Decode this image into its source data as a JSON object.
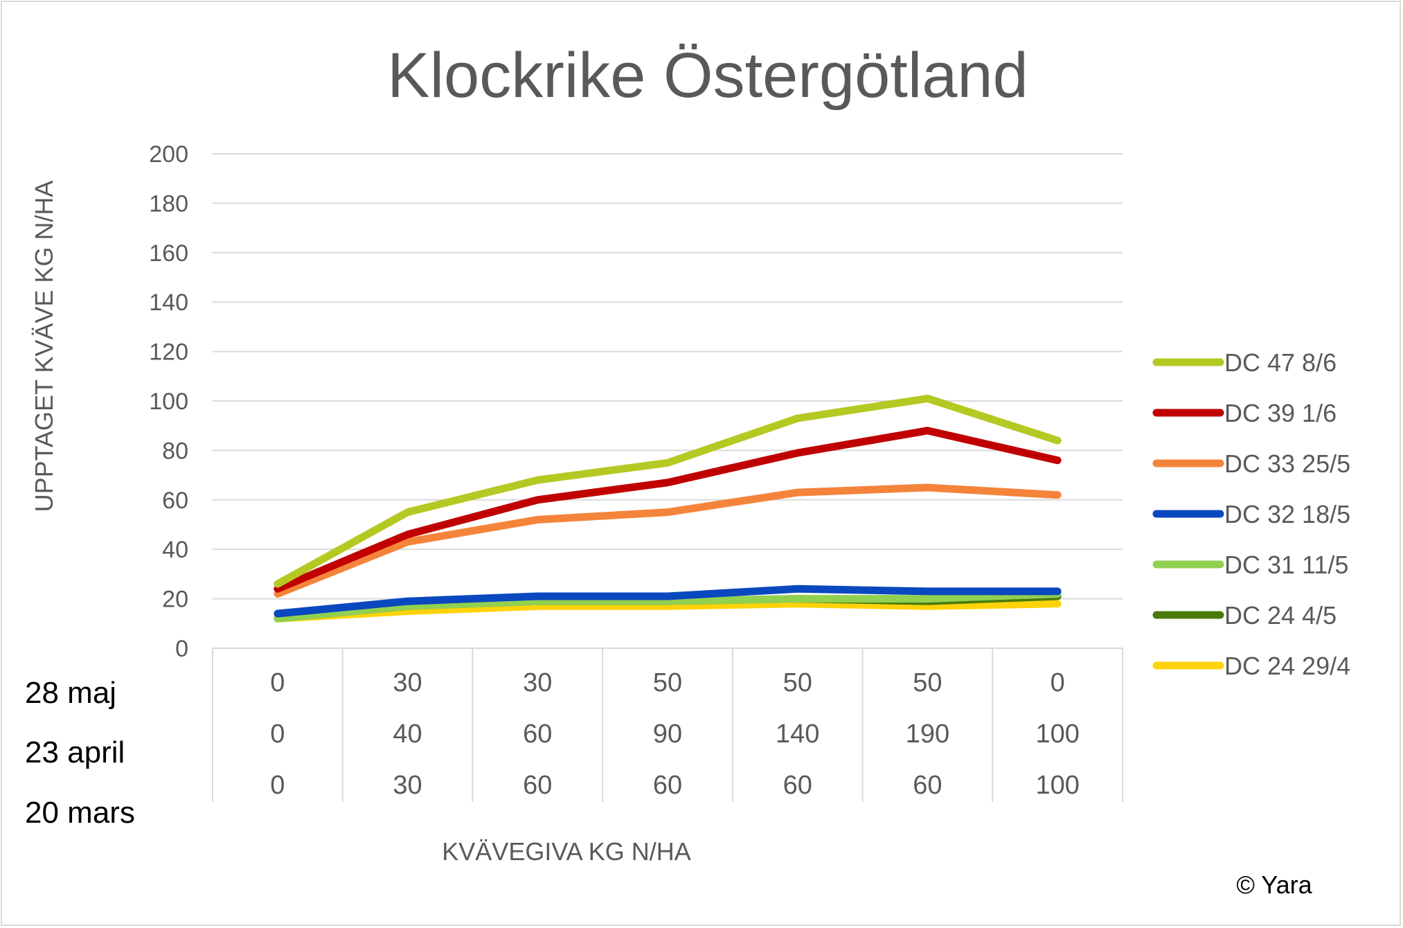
{
  "chart_data": {
    "type": "line",
    "title": "Klockrike Östergötland",
    "xlabel": "KVÄVEGIVA KG N/HA",
    "ylabel": "UPPTAGET KVÄVE KG N/HA",
    "ylim": [
      0,
      200
    ],
    "yticks": [
      0,
      20,
      40,
      60,
      80,
      100,
      120,
      140,
      160,
      180,
      200
    ],
    "grid": true,
    "legend_position": "right",
    "category_rows": [
      {
        "label": "28 maj",
        "values": [
          "0",
          "30",
          "30",
          "50",
          "50",
          "50",
          "0"
        ]
      },
      {
        "label": "23 april",
        "values": [
          "0",
          "40",
          "60",
          "90",
          "140",
          "190",
          "100"
        ]
      },
      {
        "label": "20 mars",
        "values": [
          "0",
          "30",
          "60",
          "60",
          "60",
          "60",
          "100"
        ]
      }
    ],
    "series": [
      {
        "name": "DC 47 8/6",
        "color": "#b5c923",
        "values": [
          26,
          55,
          68,
          75,
          93,
          101,
          84
        ]
      },
      {
        "name": "DC 39 1/6",
        "color": "#c00000",
        "values": [
          24,
          46,
          60,
          67,
          79,
          88,
          76
        ]
      },
      {
        "name": "DC 33 25/5",
        "color": "#f5843b",
        "values": [
          22,
          43,
          52,
          55,
          63,
          65,
          62
        ]
      },
      {
        "name": "DC 32 18/5",
        "color": "#0a48bf",
        "values": [
          14,
          19,
          21,
          21,
          24,
          23,
          23
        ]
      },
      {
        "name": "DC 31 11/5",
        "color": "#92d050",
        "values": [
          12,
          17,
          19,
          19,
          20,
          20,
          22
        ]
      },
      {
        "name": "DC 24 4/5",
        "color": "#4a7b0a",
        "values": [
          12,
          17,
          19,
          19,
          20,
          19,
          21
        ]
      },
      {
        "name": "DC 24 29/4",
        "color": "#ffd30a",
        "values": [
          12,
          15,
          17,
          17,
          18,
          17,
          18
        ]
      }
    ]
  },
  "copyright": "© Yara"
}
